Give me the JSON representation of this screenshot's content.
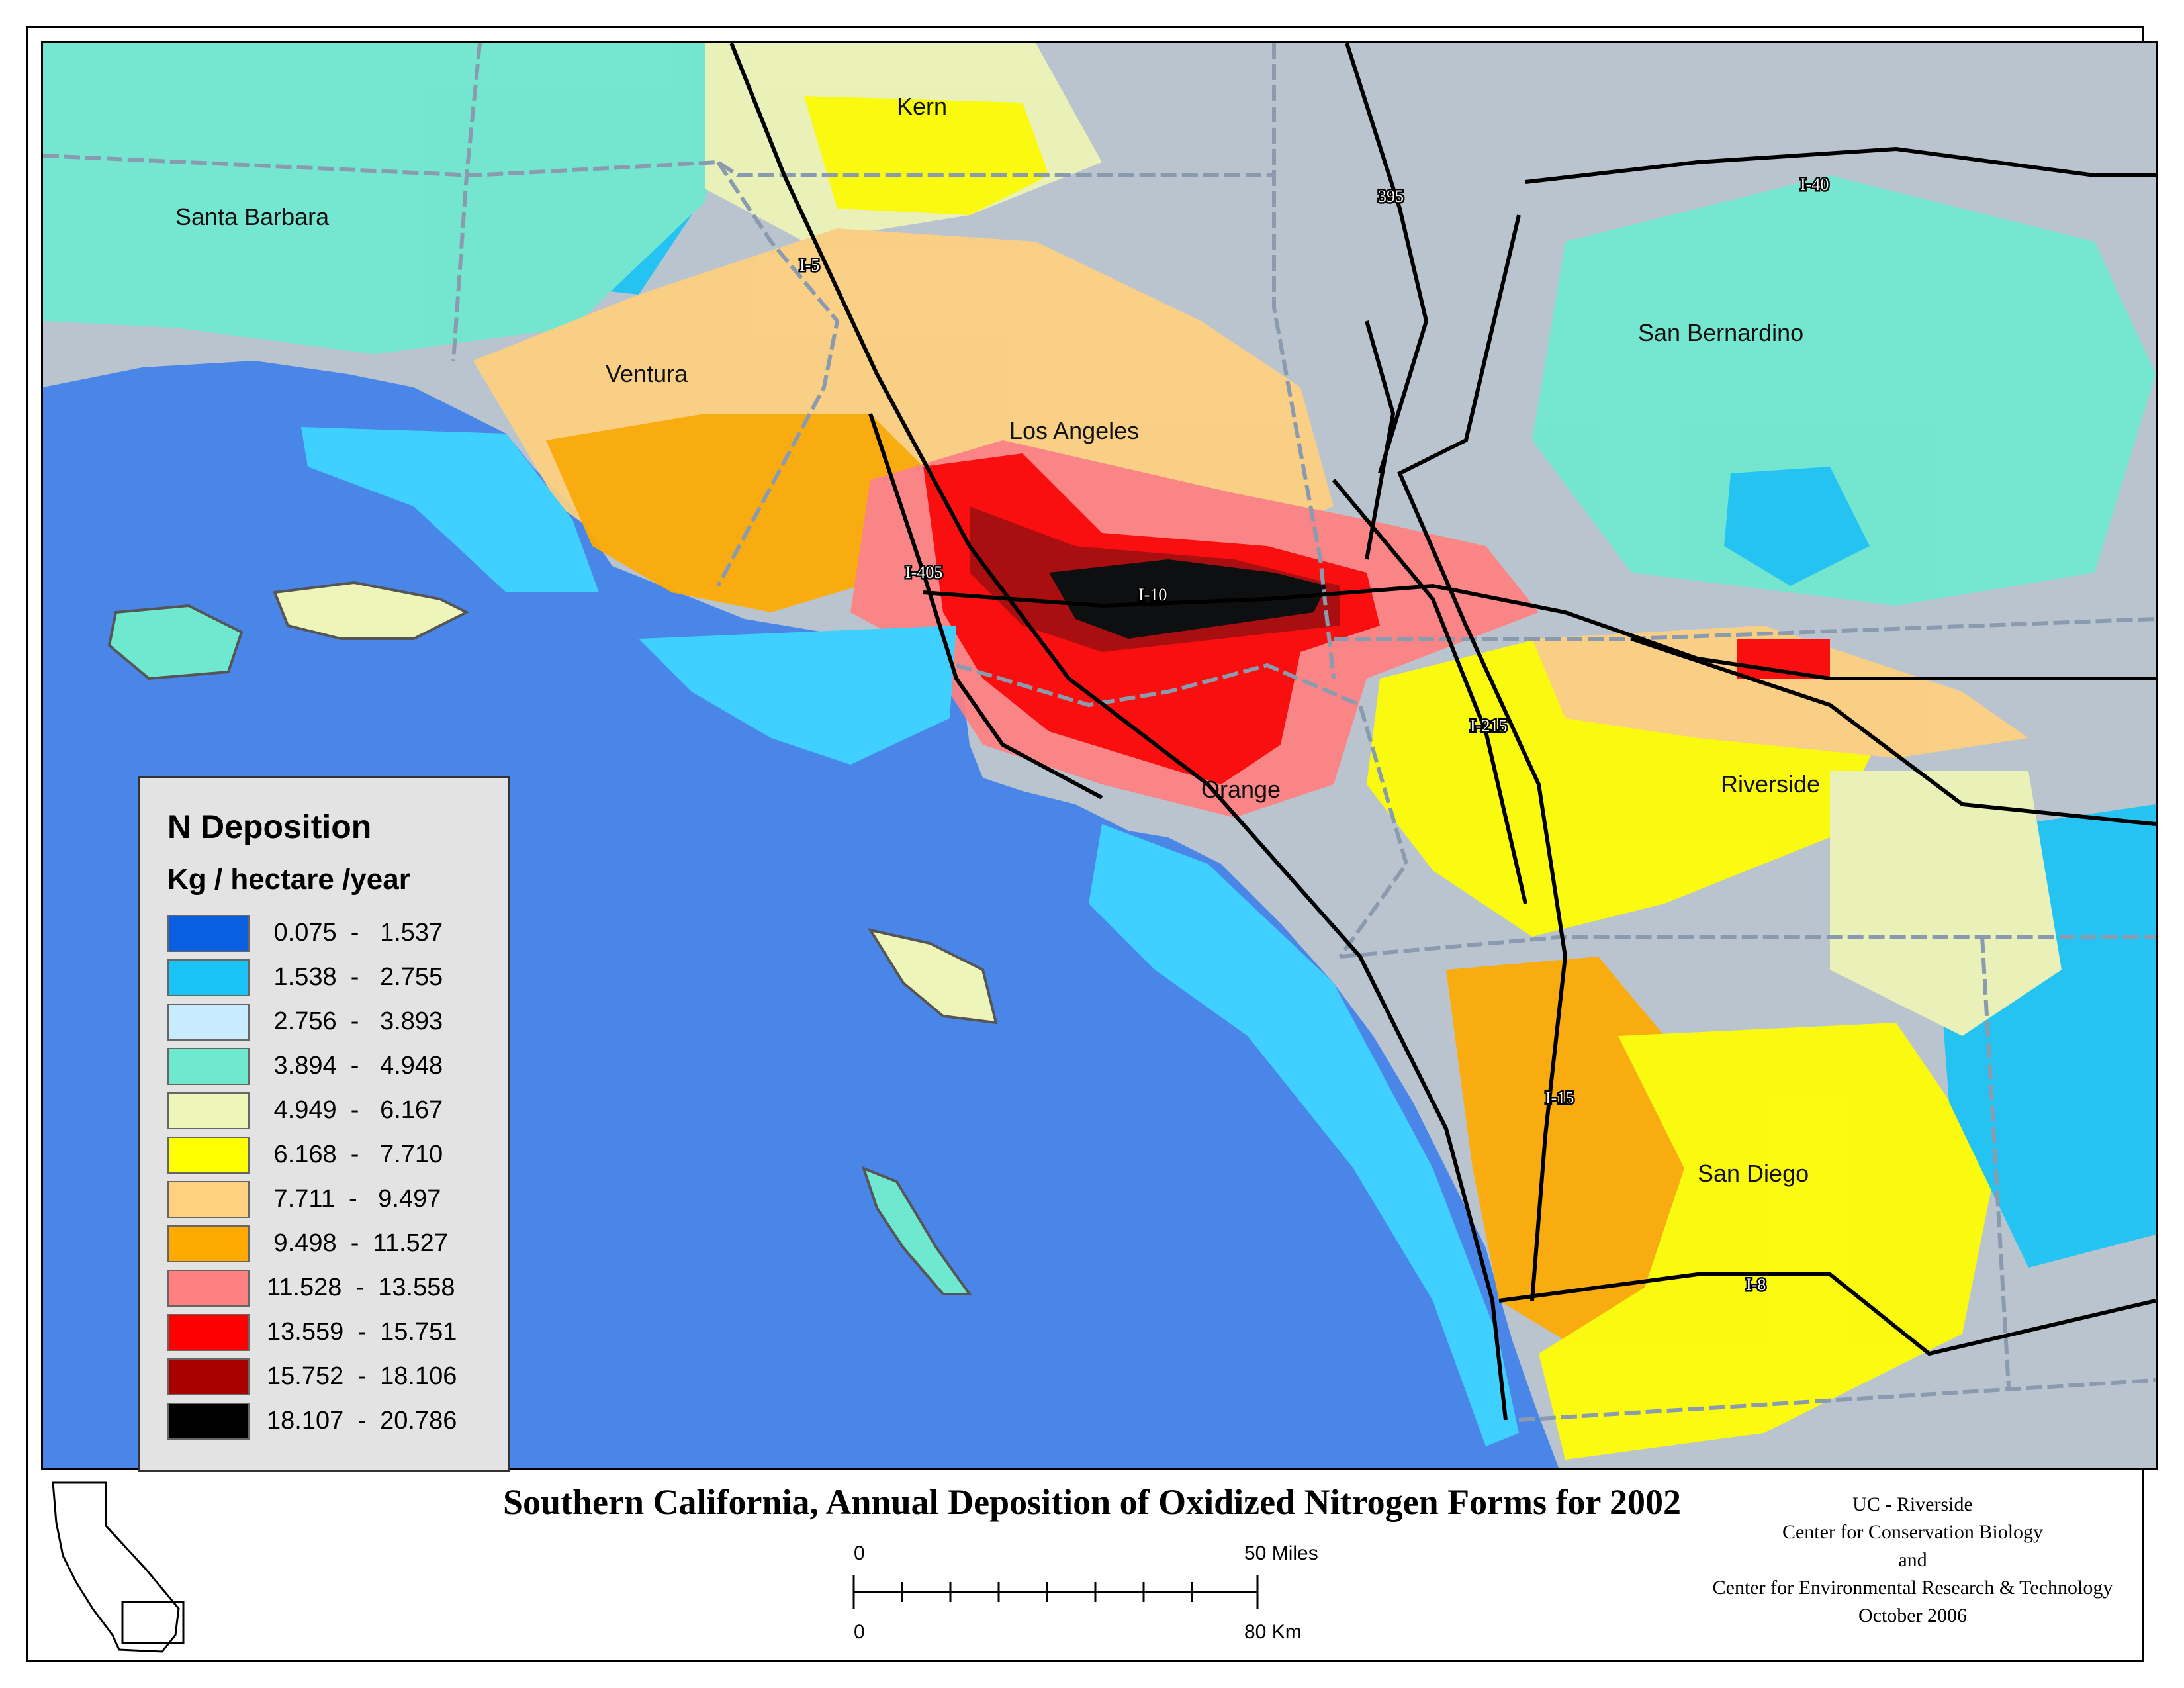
{
  "title": "Southern California, Annual Deposition of Oxidized Nitrogen Forms for 2002",
  "legend": {
    "title": "N Deposition",
    "units": "Kg / hectare /year",
    "classes": [
      {
        "min": "0.075",
        "max": "1.537",
        "color": "#0a5fe0"
      },
      {
        "min": "1.538",
        "max": "2.755",
        "color": "#19c3f5"
      },
      {
        "min": "2.756",
        "max": "3.893",
        "color": "#c9ebff"
      },
      {
        "min": "3.894",
        "max": "4.948",
        "color": "#6fe8d0"
      },
      {
        "min": "4.949",
        "max": "6.167",
        "color": "#eef5b8"
      },
      {
        "min": "6.168",
        "max": "7.710",
        "color": "#ffff00"
      },
      {
        "min": "7.711",
        "max": "9.497",
        "color": "#ffd080"
      },
      {
        "min": "9.498",
        "max": "11.527",
        "color": "#ffaa00"
      },
      {
        "min": "11.528",
        "max": "13.558",
        "color": "#ff8080"
      },
      {
        "min": "13.559",
        "max": "15.751",
        "color": "#ff0000"
      },
      {
        "min": "15.752",
        "max": "18.106",
        "color": "#a80000"
      },
      {
        "min": "18.107",
        "max": "20.786",
        "color": "#000000"
      }
    ]
  },
  "place_labels": {
    "kern": "Kern",
    "santa_barbara": "Santa Barbara",
    "ventura": "Ventura",
    "los_angeles": "Los Angeles",
    "san_bernardino": "San Bernardino",
    "riverside": "Riverside",
    "orange": "Orange",
    "san_diego": "San Diego"
  },
  "highway_labels": {
    "i5": "I-5",
    "us395": "395",
    "i40": "I-40",
    "i405": "I-405",
    "i10": "I-10",
    "i215": "I-215",
    "i15": "I-15",
    "i8": "I-8"
  },
  "scale_bar": {
    "miles_start": "0",
    "miles_end": "50 Miles",
    "km_start": "0",
    "km_end": "80 Km"
  },
  "credits": [
    "UC - Riverside",
    "Center for Conservation Biology",
    "and",
    "Center for Environmental Research & Technology",
    "October 2006"
  ],
  "colors": {
    "ocean": "#4a86e8",
    "county_border": "#8a9bb0",
    "highway": "#000000"
  }
}
